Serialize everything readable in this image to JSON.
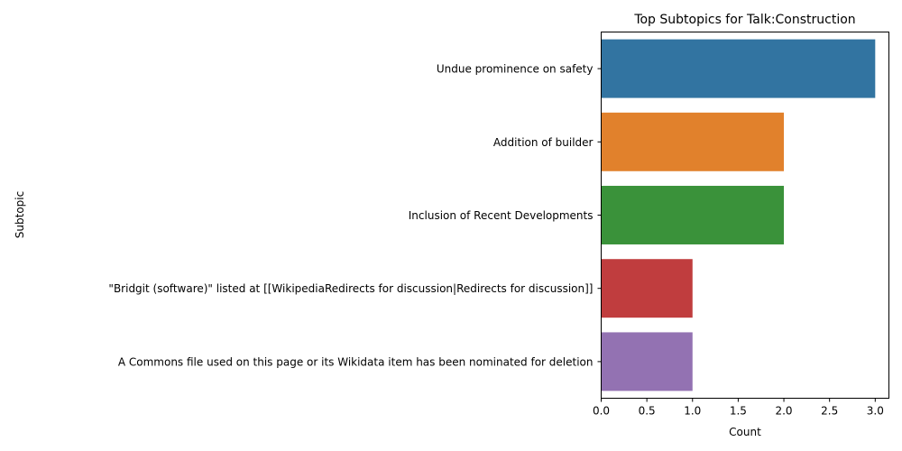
{
  "chart_data": {
    "type": "bar",
    "orientation": "horizontal",
    "title": "Top Subtopics for Talk:Construction",
    "xlabel": "Count",
    "ylabel": "Subtopic",
    "categories": [
      "Undue prominence on safety",
      "Addition of builder",
      "Inclusion of Recent Developments",
      "\"Bridgit (software)\" listed at [[WikipediaRedirects for discussion|Redirects for discussion]]",
      "A Commons file used on this page or its Wikidata item has been nominated for deletion"
    ],
    "values": [
      3,
      2,
      2,
      1,
      1
    ],
    "colors": [
      "#3274a1",
      "#e1812c",
      "#3a923a",
      "#c03d3e",
      "#9372b2"
    ],
    "xlim": [
      0,
      3.15
    ],
    "xticks": [
      0.0,
      0.5,
      1.0,
      1.5,
      2.0,
      2.5,
      3.0
    ],
    "xtick_labels": [
      "0.0",
      "0.5",
      "1.0",
      "1.5",
      "2.0",
      "2.5",
      "3.0"
    ],
    "grid": false,
    "legend": false
  }
}
